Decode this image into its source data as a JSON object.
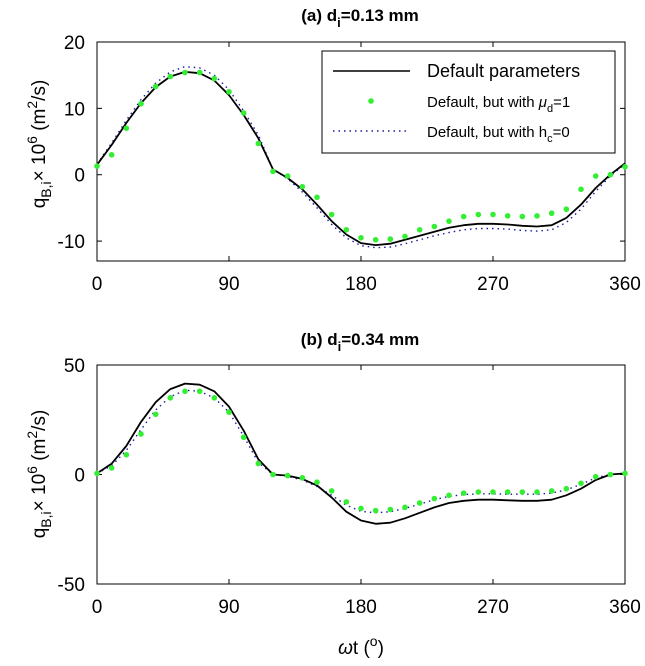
{
  "chart_data": [
    {
      "type": "line",
      "title": "(a) d",
      "title_sub": "i",
      "title_rest": "=0.13 mm",
      "ylabel_q": "q",
      "ylabel_sub": "B,i",
      "ylabel_mid": "× 10",
      "ylabel_exp": "6",
      "ylabel_unit": " (m",
      "ylabel_unit_exp": "2",
      "ylabel_unit_end": "/s)",
      "xlim": [
        0,
        360
      ],
      "ylim": [
        -13,
        20
      ],
      "xticks": [
        0,
        90,
        180,
        270,
        360
      ],
      "xtick_labels": [
        "0",
        "90",
        "180",
        "270",
        "360"
      ],
      "yticks": [
        -10,
        0,
        10,
        20
      ],
      "ytick_labels": [
        "-10",
        "0",
        "10",
        "20"
      ],
      "legend": {
        "position": "top-right",
        "entries": [
          {
            "label": "Default parameters"
          },
          {
            "label_pre": "Default, but with ",
            "label_sym": "μ",
            "label_sub": "d",
            "label_post": "=1"
          },
          {
            "label_pre": "Default, but with h",
            "label_sub": "c",
            "label_post": "=0"
          }
        ]
      },
      "series": [
        {
          "name": "Default parameters",
          "style": "solid",
          "color": "#000000",
          "x": [
            0,
            10,
            20,
            30,
            40,
            50,
            60,
            70,
            80,
            90,
            100,
            110,
            120,
            130,
            140,
            150,
            160,
            170,
            180,
            190,
            200,
            210,
            220,
            230,
            240,
            250,
            260,
            270,
            280,
            290,
            300,
            310,
            320,
            330,
            340,
            350,
            360
          ],
          "y": [
            1.5,
            4.5,
            7.8,
            10.8,
            13.2,
            14.8,
            15.5,
            15.3,
            14.2,
            12.0,
            9.0,
            5.5,
            0.8,
            -0.5,
            -2.2,
            -4.5,
            -7.0,
            -9.0,
            -10.3,
            -10.6,
            -10.4,
            -9.8,
            -9.2,
            -8.6,
            -8.0,
            -7.6,
            -7.4,
            -7.4,
            -7.5,
            -7.7,
            -7.8,
            -7.6,
            -6.5,
            -4.5,
            -2.0,
            0.0,
            1.7
          ]
        },
        {
          "name": "Default, but with μd=1",
          "style": "dots",
          "color": "#33ee33",
          "x": [
            0,
            10,
            20,
            30,
            40,
            50,
            60,
            70,
            80,
            90,
            100,
            110,
            120,
            130,
            140,
            150,
            160,
            170,
            180,
            190,
            200,
            210,
            220,
            230,
            240,
            250,
            260,
            270,
            280,
            290,
            300,
            310,
            320,
            330,
            340,
            350,
            360
          ],
          "y": [
            1.3,
            3.0,
            7.0,
            10.7,
            13.3,
            14.8,
            15.4,
            15.4,
            14.5,
            12.5,
            9.3,
            4.7,
            0.5,
            -0.2,
            -1.8,
            -3.4,
            -6.0,
            -8.3,
            -9.5,
            -9.8,
            -9.7,
            -9.3,
            -8.3,
            -7.8,
            -7.0,
            -6.3,
            -6.0,
            -6.0,
            -6.2,
            -6.3,
            -6.2,
            -5.8,
            -5.2,
            -2.2,
            -0.2,
            0.0,
            1.2
          ]
        },
        {
          "name": "Default, but with hc=0",
          "style": "dotted",
          "color": "#1a1aa6",
          "x": [
            0,
            10,
            20,
            30,
            40,
            50,
            60,
            70,
            80,
            90,
            100,
            110,
            120,
            130,
            140,
            150,
            160,
            170,
            180,
            190,
            200,
            210,
            220,
            230,
            240,
            250,
            260,
            270,
            280,
            290,
            300,
            310,
            320,
            330,
            340,
            350,
            360
          ],
          "y": [
            1.6,
            4.8,
            8.2,
            11.3,
            13.8,
            15.5,
            16.3,
            16.1,
            15.0,
            12.8,
            9.6,
            6.0,
            0.8,
            -0.6,
            -2.6,
            -5.0,
            -7.5,
            -9.5,
            -10.7,
            -11.0,
            -10.9,
            -10.4,
            -9.8,
            -9.2,
            -8.7,
            -8.3,
            -8.1,
            -8.1,
            -8.2,
            -8.4,
            -8.5,
            -8.3,
            -7.2,
            -5.2,
            -2.5,
            -0.2,
            1.6
          ]
        }
      ]
    },
    {
      "type": "line",
      "title": "(b) d",
      "title_sub": "i",
      "title_rest": "=0.34 mm",
      "ylabel_q": "q",
      "ylabel_sub": "B,i",
      "ylabel_mid": "× 10",
      "ylabel_exp": "6",
      "ylabel_unit": " (m",
      "ylabel_unit_exp": "2",
      "ylabel_unit_end": "/s)",
      "xlabel_sym": "ω",
      "xlabel_rest": "t (",
      "xlabel_exp": "o",
      "xlabel_end": ")",
      "xlim": [
        0,
        360
      ],
      "ylim": [
        -50,
        50
      ],
      "xticks": [
        0,
        90,
        180,
        270,
        360
      ],
      "xtick_labels": [
        "0",
        "90",
        "180",
        "270",
        "360"
      ],
      "yticks": [
        -50,
        0,
        50
      ],
      "ytick_labels": [
        "-50",
        "0",
        "50"
      ],
      "series": [
        {
          "style": "solid",
          "color": "#000000",
          "x": [
            0,
            10,
            20,
            30,
            40,
            50,
            60,
            70,
            80,
            90,
            100,
            110,
            120,
            130,
            140,
            150,
            160,
            170,
            180,
            190,
            200,
            210,
            220,
            230,
            240,
            250,
            260,
            270,
            280,
            290,
            300,
            310,
            320,
            330,
            340,
            350,
            360
          ],
          "y": [
            0.5,
            5.0,
            13.0,
            24.0,
            33.0,
            39.0,
            41.5,
            41.0,
            38.0,
            31.0,
            20.0,
            7.0,
            0.0,
            -0.5,
            -2.0,
            -5.0,
            -10.5,
            -17.0,
            -21.0,
            -22.5,
            -22.0,
            -20.0,
            -17.5,
            -15.0,
            -13.0,
            -12.0,
            -11.5,
            -11.5,
            -11.8,
            -12.0,
            -12.0,
            -11.5,
            -9.5,
            -6.5,
            -2.5,
            0.0,
            0.5
          ]
        },
        {
          "style": "dots",
          "color": "#33ee33",
          "x": [
            0,
            10,
            20,
            30,
            40,
            50,
            60,
            70,
            80,
            90,
            100,
            110,
            120,
            130,
            140,
            150,
            160,
            170,
            180,
            190,
            200,
            210,
            220,
            230,
            240,
            250,
            260,
            270,
            280,
            290,
            300,
            310,
            320,
            330,
            340,
            350,
            360
          ],
          "y": [
            0.5,
            3.0,
            9.0,
            18.5,
            27.5,
            35.0,
            38.0,
            38.0,
            35.0,
            28.5,
            17.0,
            5.0,
            0.0,
            -0.5,
            -1.5,
            -3.5,
            -7.5,
            -12.5,
            -15.5,
            -16.5,
            -16.0,
            -15.0,
            -13.0,
            -11.0,
            -9.5,
            -8.5,
            -8.0,
            -8.0,
            -8.0,
            -8.0,
            -8.0,
            -7.5,
            -6.5,
            -4.0,
            -1.0,
            0.0,
            0.5
          ]
        },
        {
          "style": "dotted",
          "color": "#1a1aa6",
          "x": [
            0,
            10,
            20,
            30,
            40,
            50,
            60,
            70,
            80,
            90,
            100,
            110,
            120,
            130,
            140,
            150,
            160,
            170,
            180,
            190,
            200,
            210,
            220,
            230,
            240,
            250,
            260,
            270,
            280,
            290,
            300,
            310,
            320,
            330,
            340,
            350,
            360
          ],
          "y": [
            0.5,
            4.0,
            11.0,
            20.5,
            29.5,
            35.5,
            38.5,
            38.0,
            35.0,
            28.5,
            17.5,
            5.5,
            0.0,
            -0.8,
            -2.5,
            -5.5,
            -9.5,
            -14.0,
            -16.8,
            -17.5,
            -17.0,
            -15.5,
            -13.5,
            -11.5,
            -10.0,
            -9.2,
            -8.8,
            -8.8,
            -9.0,
            -9.0,
            -9.0,
            -8.5,
            -7.0,
            -4.5,
            -1.5,
            0.0,
            0.5
          ]
        }
      ]
    }
  ]
}
